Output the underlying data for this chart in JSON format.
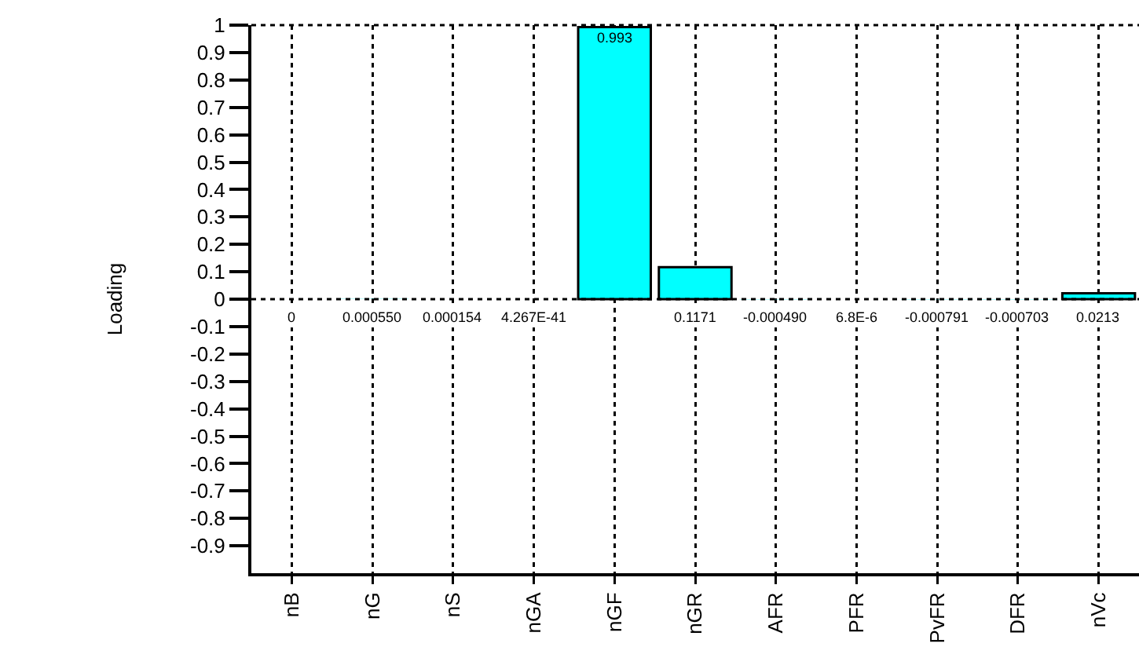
{
  "chart_data": {
    "type": "bar",
    "ylabel": "Loading",
    "categories": [
      "nB",
      "nG",
      "nS",
      "nGA",
      "nGF",
      "nGR",
      "AFR",
      "PFR",
      "PvFR",
      "DFR",
      "nVc"
    ],
    "values": [
      0,
      0.00055,
      0.000154,
      4.267e-41,
      0.993,
      0.1171,
      -0.00049,
      6.8e-06,
      -0.000791,
      -0.000703,
      0.0213
    ],
    "value_labels": [
      "0",
      "0.000550",
      "0.000154",
      "4.267E-41",
      "0.993",
      "0.1171",
      "-0.000490",
      "6.8E-6",
      "-0.000791",
      "-0.000703",
      "0.0213"
    ],
    "color": "#00ffff",
    "ylim": [
      -1,
      1
    ],
    "yticks": [
      -0.9,
      -0.8,
      -0.7,
      -0.6,
      -0.5,
      -0.4,
      -0.3,
      -0.2,
      -0.1,
      0,
      0.1,
      0.2,
      0.3,
      0.4,
      0.5,
      0.6,
      0.7,
      0.8,
      0.9,
      1
    ],
    "grid": "x",
    "ref_lines": [
      {
        "axis": "y",
        "value": 0,
        "line_style": "dotted"
      }
    ]
  }
}
